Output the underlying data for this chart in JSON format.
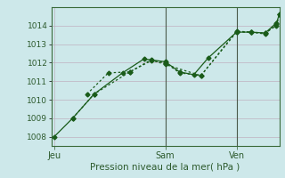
{
  "title": "",
  "xlabel": "Pression niveau de la mer( hPa )",
  "ylabel": "",
  "bg_color": "#cde8ea",
  "plot_bg_color": "#cde8ea",
  "grid_major_color": "#c0b0c0",
  "grid_minor_color": "#d8c8d8",
  "line_color": "#1a5c1a",
  "ylim": [
    1007.5,
    1015.0
  ],
  "xlim": [
    0,
    16
  ],
  "yticks": [
    1008,
    1009,
    1010,
    1011,
    1012,
    1013,
    1014
  ],
  "xtick_positions": [
    0.2,
    8.0,
    13.0
  ],
  "xtick_labels": [
    "Jeu",
    "Sam",
    "Ven"
  ],
  "vlines": [
    8.0,
    13.0
  ],
  "series1_x": [
    0.2,
    1.5,
    3.0,
    5.0,
    6.5,
    8.0,
    9.0,
    10.0,
    11.0,
    13.0,
    14.0,
    15.0,
    15.8,
    16.0
  ],
  "series1_y": [
    1008.0,
    1009.0,
    1010.3,
    1011.45,
    1012.2,
    1012.05,
    1011.5,
    1011.35,
    1012.25,
    1013.65,
    1013.65,
    1013.6,
    1014.15,
    1014.6
  ],
  "series2_x": [
    2.5,
    4.0,
    5.5,
    7.0,
    8.0,
    9.0,
    10.5,
    13.0,
    14.0,
    15.0,
    15.8,
    16.0
  ],
  "series2_y": [
    1010.3,
    1011.45,
    1011.5,
    1012.1,
    1012.0,
    1011.45,
    1011.3,
    1013.65,
    1013.65,
    1013.6,
    1014.0,
    1014.6
  ],
  "series3_x": [
    1.5,
    3.0,
    5.5,
    7.0,
    8.0,
    10.5,
    13.0,
    14.0,
    15.0,
    15.8,
    16.0
  ],
  "series3_y": [
    1009.0,
    1010.3,
    1011.5,
    1012.15,
    1011.9,
    1011.3,
    1013.7,
    1013.65,
    1013.55,
    1014.1,
    1014.6
  ]
}
